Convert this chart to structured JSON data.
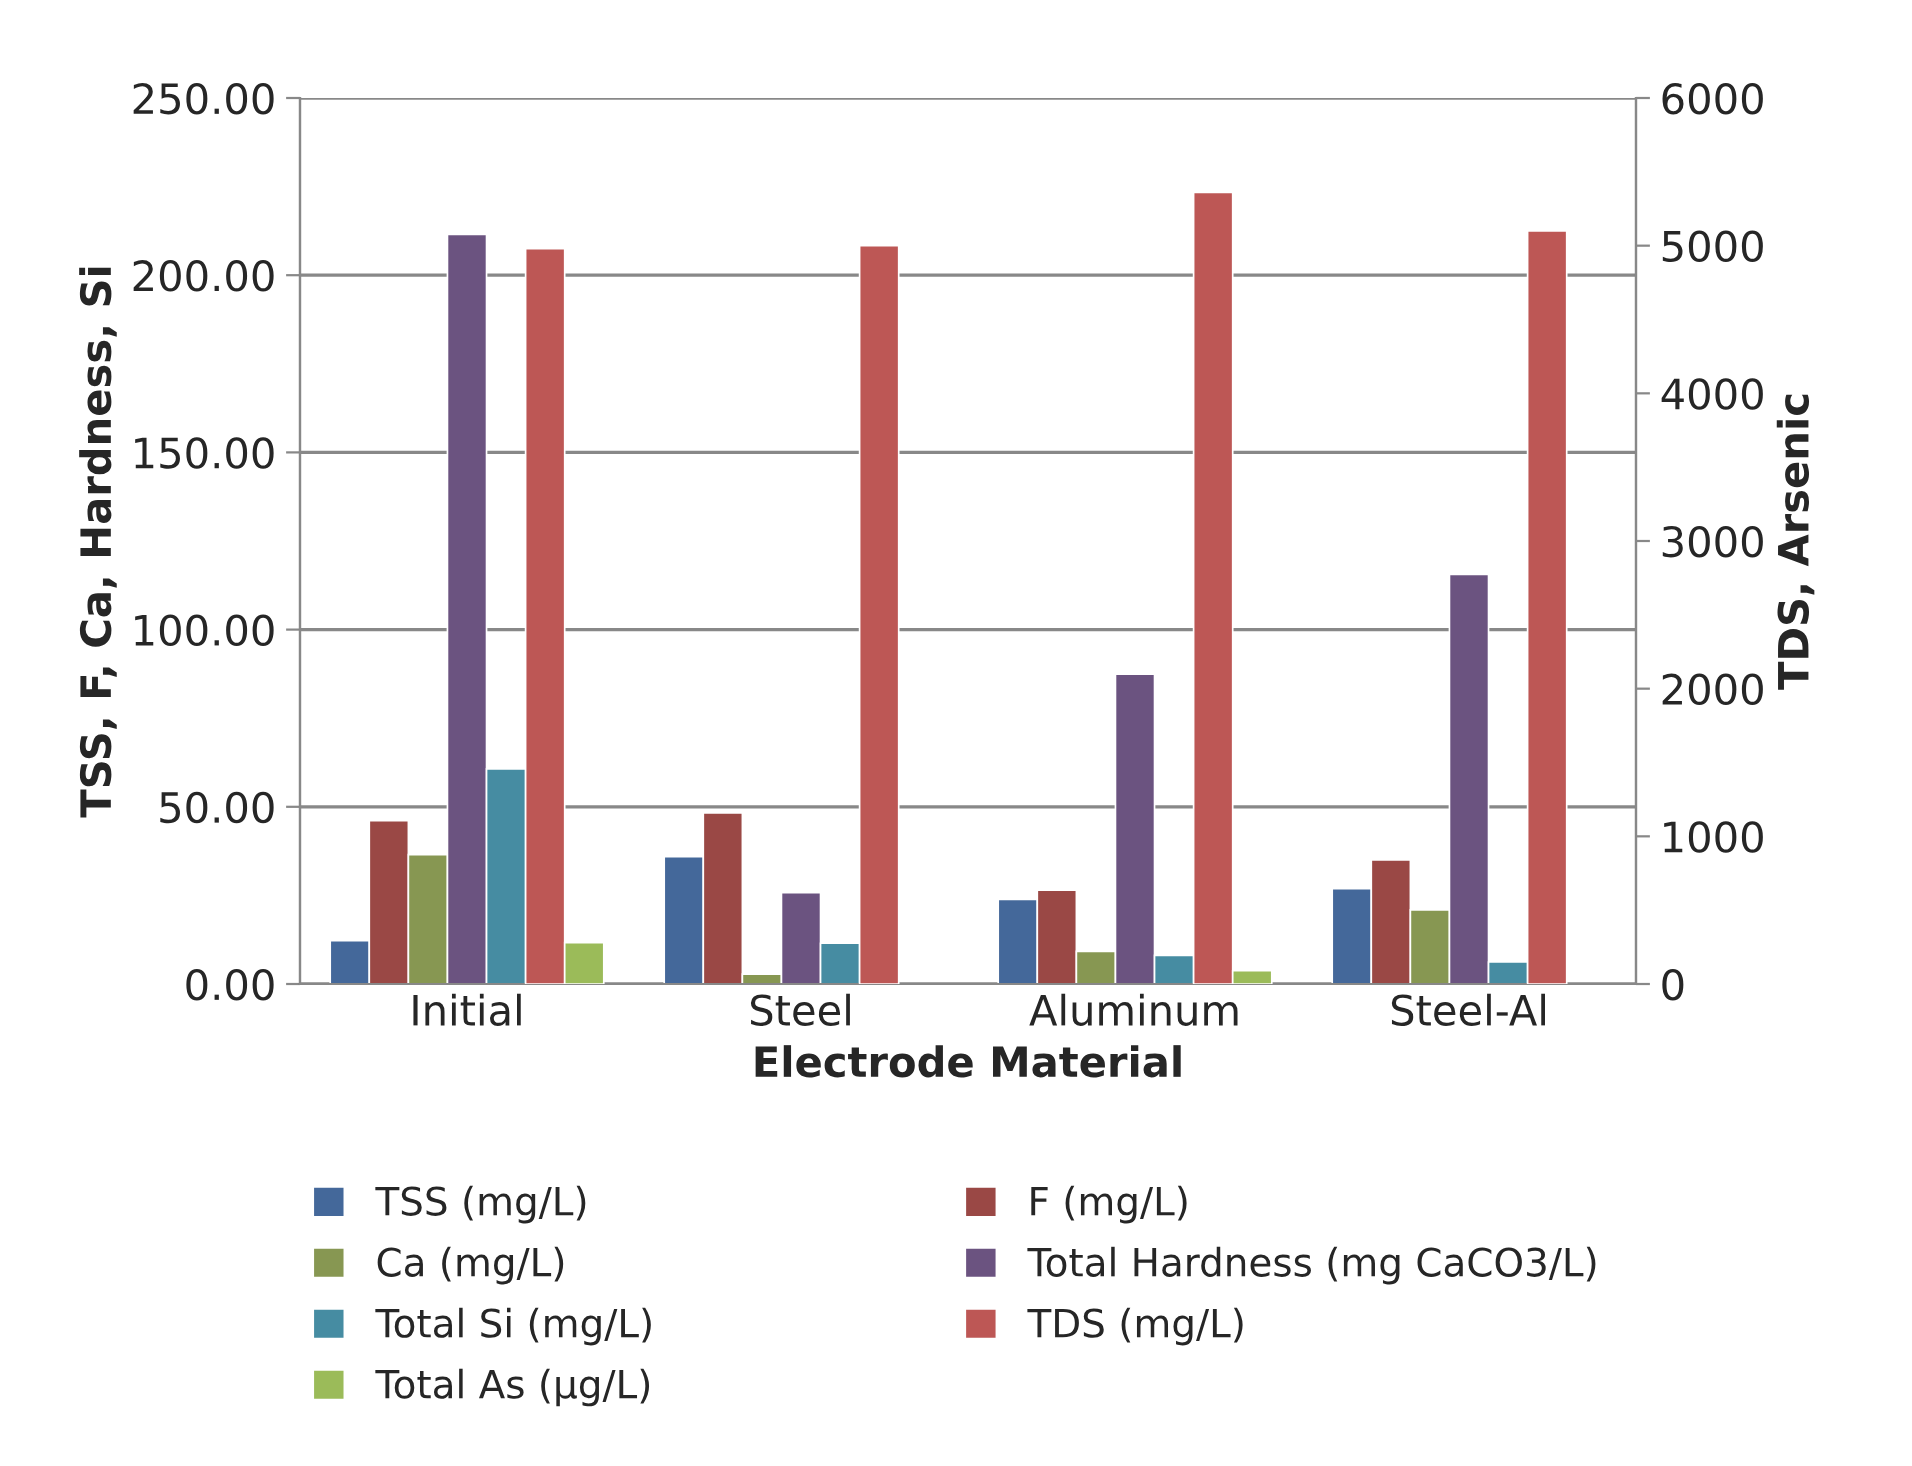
{
  "chart_data": {
    "type": "bar",
    "xlabel": "Electrode Material",
    "ylabel": "TSS, F, Ca, Hardness, Si",
    "y2label": "TDS, Arsenic",
    "categories": [
      "Initial",
      "Steel",
      "Aluminum",
      "Steel-Al"
    ],
    "series": [
      {
        "name": "TSS (mg/L)",
        "color": "#44689a",
        "values": [
          12.2,
          35.9,
          23.9,
          26.9
        ]
      },
      {
        "name": "F (mg/L)",
        "color": "#9a4845",
        "values": [
          46.1,
          48.3,
          26.5,
          35.0
        ]
      },
      {
        "name": "Ca (mg/L)",
        "color": "#879752",
        "values": [
          36.5,
          2.8,
          9.2,
          20.9
        ]
      },
      {
        "name": "Total Hardness (mg CaCO3/L)",
        "color": "#6b5380",
        "values": [
          211.5,
          25.8,
          87.4,
          115.6
        ]
      },
      {
        "name": "Total Si (mg/L)",
        "color": "#468ca2",
        "values": [
          60.7,
          11.5,
          8.1,
          6.2
        ]
      },
      {
        "name": "TDS (mg/L)",
        "color": "#bd5755",
        "axis": "y2",
        "values": [
          4980,
          5000,
          5360,
          5100
        ]
      },
      {
        "name": "Total As (µg/L)",
        "color": "#9bbb59",
        "axis": "y2",
        "values": [
          280,
          null,
          90,
          null
        ]
      }
    ],
    "ylim": [
      0,
      250
    ],
    "yticks": [
      {
        "value": 0,
        "label": "0.00"
      },
      {
        "value": 50,
        "label": "50.00"
      },
      {
        "value": 100,
        "label": "100.00"
      },
      {
        "value": 150,
        "label": "150.00"
      },
      {
        "value": 200,
        "label": "200.00"
      },
      {
        "value": 250,
        "label": "250.00"
      }
    ],
    "y2lim": [
      0,
      6000
    ],
    "y2ticks": [
      0,
      1000,
      2000,
      3000,
      4000,
      5000,
      6000
    ],
    "grid": "y",
    "legend": "bottom"
  }
}
